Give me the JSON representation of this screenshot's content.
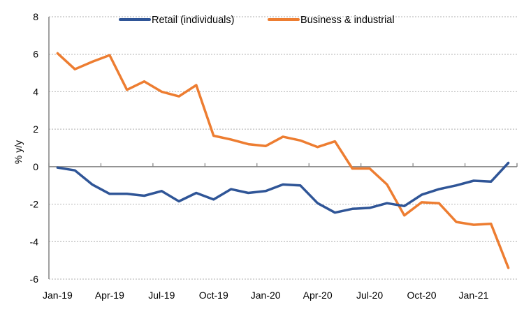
{
  "chart_data": {
    "type": "line",
    "title": "",
    "xlabel": "",
    "ylabel": "% y/y",
    "ylim": [
      -6,
      8
    ],
    "yticks": [
      8,
      6,
      4,
      2,
      0,
      -2,
      -4,
      -6
    ],
    "ytick_labels": [
      "8",
      "6",
      "4",
      "2",
      "0",
      "-2",
      "-4",
      "-6"
    ],
    "grid": "horizontal dotted",
    "legend_position": "top-center",
    "x": [
      "Jan-19",
      "Feb-19",
      "Mar-19",
      "Apr-19",
      "May-19",
      "Jun-19",
      "Jul-19",
      "Aug-19",
      "Sep-19",
      "Oct-19",
      "Nov-19",
      "Dec-19",
      "Jan-20",
      "Feb-20",
      "Mar-20",
      "Apr-20",
      "May-20",
      "Jun-20",
      "Jul-20",
      "Aug-20",
      "Sep-20",
      "Oct-20",
      "Nov-20",
      "Dec-20",
      "Jan-21",
      "Feb-21",
      "Mar-21"
    ],
    "xtick_labels": [
      "Jan-19",
      "Apr-19",
      "Jul-19",
      "Oct-19",
      "Jan-20",
      "Apr-20",
      "Jul-20",
      "Oct-20",
      "Jan-21"
    ],
    "series": [
      {
        "name": "Retail (individuals)",
        "color": "#2F5597",
        "values": [
          -0.05,
          -0.2,
          -0.95,
          -1.45,
          -1.45,
          -1.55,
          -1.3,
          -1.85,
          -1.4,
          -1.75,
          -1.2,
          -1.4,
          -1.3,
          -0.95,
          -1.0,
          -1.95,
          -2.45,
          -2.25,
          -2.2,
          -1.95,
          -2.1,
          -1.5,
          -1.2,
          -1.0,
          -0.75,
          -0.8,
          0.2
        ]
      },
      {
        "name": "Business & industrial",
        "color": "#ED7D31",
        "values": [
          6.05,
          5.2,
          5.6,
          5.95,
          4.1,
          4.55,
          4.0,
          3.75,
          4.35,
          1.65,
          1.45,
          1.2,
          1.1,
          1.6,
          1.4,
          1.05,
          1.35,
          -0.1,
          -0.1,
          -0.95,
          -2.6,
          -1.9,
          -1.95,
          -2.95,
          -3.1,
          -3.05,
          -5.4
        ]
      }
    ]
  }
}
